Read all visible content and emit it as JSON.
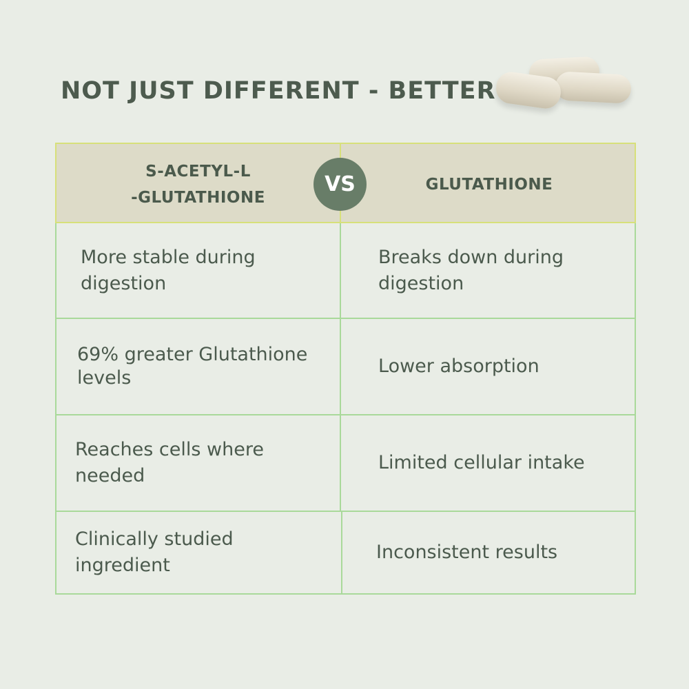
{
  "title": "NOT JUST DIFFERENT - BETTER",
  "image": {
    "icon": "capsules-image"
  },
  "comparison": {
    "left_header": "S-ACETYL-L -GLUTATHIONE",
    "left_header_lines": [
      "S-ACETYL-L",
      "-GLUTATHIONE"
    ],
    "vs_label": "VS",
    "right_header": "GLUTATHIONE",
    "rows": [
      {
        "left": "More stable during digestion",
        "right": "Breaks down during digestion"
      },
      {
        "left": "69% greater Glutathione levels",
        "right": "Lower absorption"
      },
      {
        "left": "Reaches cells where needed",
        "right": "Limited cellular intake"
      },
      {
        "left": "Clinically studied ingredient",
        "right": "Inconsistent results"
      }
    ]
  },
  "colors": {
    "background": "#e9ede6",
    "header_bg": "#dddbc8",
    "vs_badge": "#687d68",
    "text": "#4b5a4d",
    "border": "#a9d99a"
  }
}
